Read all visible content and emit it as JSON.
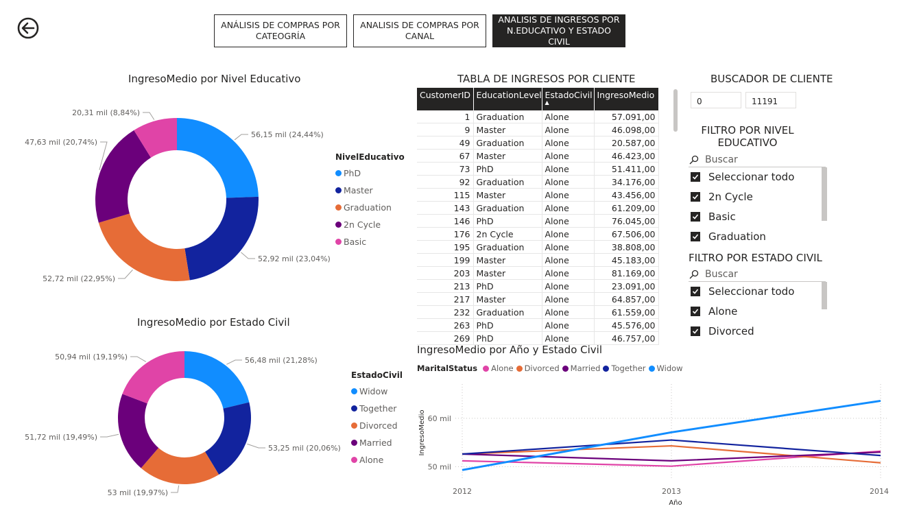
{
  "nav": {
    "btn1": "ANÁLISIS DE COMPRAS POR CATEOGRÍA",
    "btn2": "ANALISIS DE COMPRAS POR CANAL",
    "btn3": "ANALISIS DE INGRESOS POR N.EDUCATIVO Y ESTADO CIVIL"
  },
  "titles": {
    "donut1": "IngresoMedio por Nivel Educativo",
    "donut2": "IngresoMedio por Estado Civil",
    "table": "TABLA DE INGRESOS POR CLIENTE",
    "buscador": "BUSCADOR DE CLIENTE",
    "filtro_nivel": "FILTRO POR NIVEL EDUCATIVO",
    "filtro_estado": "FILTRO POR ESTADO CIVIL",
    "line": "IngresoMedio por Año y Estado Civil"
  },
  "colors": {
    "phd": "#118dff",
    "master": "#12239e",
    "graduation": "#e66c37",
    "cycle": "#6b007b",
    "basic": "#e044a7",
    "widow": "#118dff",
    "together": "#12239e",
    "divorced": "#e66c37",
    "married": "#6b007b",
    "alone": "#e044a7"
  },
  "donut1": {
    "legend_title": "NivelEducativo",
    "legend": [
      "PhD",
      "Master",
      "Graduation",
      "2n Cycle",
      "Basic"
    ],
    "labels": [
      "56,15 mil (24,44%)",
      "52,92 mil (23,04%)",
      "52,72 mil (22,95%)",
      "47,63 mil (20,74%)",
      "20,31 mil (8,84%)"
    ]
  },
  "donut2": {
    "legend_title": "EstadoCivil",
    "legend": [
      "Widow",
      "Together",
      "Divorced",
      "Married",
      "Alone"
    ],
    "labels": [
      "56,48 mil (21,28%)",
      "53,25 mil (20,06%)",
      "53 mil (19,97%)",
      "51,72 mil (19,49%)",
      "50,94 mil (19,19%)"
    ]
  },
  "chart_data": [
    {
      "type": "pie",
      "title": "IngresoMedio por Nivel Educativo",
      "categories": [
        "PhD",
        "Master",
        "Graduation",
        "2n Cycle",
        "Basic"
      ],
      "values": [
        56.15,
        52.92,
        52.72,
        47.63,
        20.31
      ],
      "percent": [
        24.44,
        23.04,
        22.95,
        20.74,
        8.84
      ]
    },
    {
      "type": "pie",
      "title": "IngresoMedio por Estado Civil",
      "categories": [
        "Widow",
        "Together",
        "Divorced",
        "Married",
        "Alone"
      ],
      "values": [
        56.48,
        53.25,
        53.0,
        51.72,
        50.94
      ],
      "percent": [
        21.28,
        20.06,
        19.97,
        19.49,
        19.19
      ]
    },
    {
      "type": "line",
      "title": "IngresoMedio por Año y Estado Civil",
      "xlabel": "Año",
      "ylabel": "IngresoMedio",
      "legend_title": "MaritalStatus",
      "x": [
        2012,
        2013,
        2014
      ],
      "x_ticks": [
        "2012",
        "2013",
        "2014"
      ],
      "y_ticks": [
        "50 mil",
        "60 mil"
      ],
      "ylim": [
        47.5,
        66.5
      ],
      "series": [
        {
          "name": "Alone",
          "values": [
            51.2,
            50.1,
            53.2
          ]
        },
        {
          "name": "Divorced",
          "values": [
            52.6,
            54.3,
            50.8
          ]
        },
        {
          "name": "Married",
          "values": [
            52.6,
            51.2,
            53.0
          ]
        },
        {
          "name": "Together",
          "values": [
            52.6,
            55.5,
            52.3
          ]
        },
        {
          "name": "Widow",
          "values": [
            49.3,
            57.1,
            63.6
          ]
        }
      ]
    }
  ],
  "table": {
    "headers": [
      "CustomerID",
      "EducationLevel",
      "EstadoCivil",
      "IngresoMedio"
    ],
    "rows": [
      [
        "1",
        "Graduation",
        "Alone",
        "57.091,00"
      ],
      [
        "9",
        "Master",
        "Alone",
        "46.098,00"
      ],
      [
        "49",
        "Graduation",
        "Alone",
        "20.587,00"
      ],
      [
        "67",
        "Master",
        "Alone",
        "46.423,00"
      ],
      [
        "73",
        "PhD",
        "Alone",
        "51.411,00"
      ],
      [
        "92",
        "Graduation",
        "Alone",
        "34.176,00"
      ],
      [
        "115",
        "Master",
        "Alone",
        "43.456,00"
      ],
      [
        "143",
        "Graduation",
        "Alone",
        "61.209,00"
      ],
      [
        "146",
        "PhD",
        "Alone",
        "76.045,00"
      ],
      [
        "176",
        "2n Cycle",
        "Alone",
        "67.506,00"
      ],
      [
        "195",
        "Graduation",
        "Alone",
        "38.808,00"
      ],
      [
        "199",
        "Master",
        "Alone",
        "45.183,00"
      ],
      [
        "203",
        "Master",
        "Alone",
        "81.169,00"
      ],
      [
        "213",
        "PhD",
        "Alone",
        "23.091,00"
      ],
      [
        "217",
        "Master",
        "Alone",
        "64.857,00"
      ],
      [
        "232",
        "Graduation",
        "Alone",
        "61.559,00"
      ],
      [
        "263",
        "PhD",
        "Alone",
        "45.576,00"
      ],
      [
        "269",
        "PhD",
        "Alone",
        "46.757,00"
      ]
    ]
  },
  "buscador": {
    "min": "0",
    "max": "11191"
  },
  "filtro_nivel": {
    "placeholder": "Buscar",
    "items": [
      "Seleccionar todo",
      "2n Cycle",
      "Basic",
      "Graduation"
    ]
  },
  "filtro_estado": {
    "placeholder": "Buscar",
    "items": [
      "Seleccionar todo",
      "Alone",
      "Divorced"
    ]
  }
}
